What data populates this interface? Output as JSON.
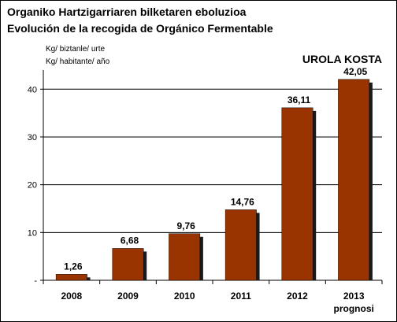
{
  "chart_data": {
    "type": "bar",
    "title_lines": [
      "Organiko Hartzigarriaren bilketaren eboluzioa",
      "Evolución de la recogida de Orgánico Fermentable"
    ],
    "unit_lines": [
      "Kg/ biztanle/ urte",
      "Kg/ habitante/ año"
    ],
    "region_label": "UROLA KOSTA",
    "categories": [
      "2008",
      "2009",
      "2010",
      "2011",
      "2012",
      "2013"
    ],
    "category_sublabels": [
      "",
      "",
      "",
      "",
      "",
      "prognosi"
    ],
    "values": [
      1.26,
      6.68,
      9.76,
      14.76,
      36.11,
      42.05
    ],
    "value_labels": [
      "1,26",
      "6,68",
      "9,76",
      "14,76",
      "36,11",
      "42,05"
    ],
    "y_ticks": [
      0,
      10,
      20,
      30,
      40
    ],
    "y_tick_labels": [
      "-",
      "10",
      "20",
      "30",
      "40"
    ],
    "ylim": [
      0,
      44
    ],
    "grid": true,
    "legend": "none",
    "bar_color": "#993300",
    "bar_shadow_color": "#1a1a1a",
    "xlabel": "",
    "ylabel": ""
  }
}
